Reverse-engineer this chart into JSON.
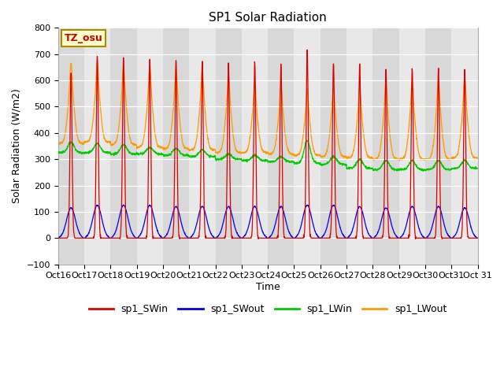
{
  "title": "SP1 Solar Radiation",
  "ylabel": "Solar Radiation (W/m2)",
  "xlabel": "Time",
  "ylim": [
    -100,
    800
  ],
  "background_color": "#e8e8e8",
  "plot_bg_color": "#e8e8e8",
  "colors": {
    "SWin": "#dd0000",
    "SWout": "#0000ee",
    "LWin": "#00cc00",
    "LWout": "#ff9900"
  },
  "tz_label": "TZ_osu",
  "x_tick_labels": [
    "Oct 16",
    "Oct 17",
    "Oct 18",
    "Oct 19",
    "Oct 20",
    "Oct 21",
    "Oct 22",
    "Oct 23",
    "Oct 24",
    "Oct 25",
    "Oct 26",
    "Oct 27",
    "Oct 28",
    "Oct 29",
    "Oct 30",
    "Oct 31"
  ],
  "n_days": 16,
  "pts_per_day": 144,
  "SWin_peaks": [
    630,
    695,
    685,
    680,
    675,
    670,
    665,
    670,
    660,
    715,
    670,
    665,
    645,
    645,
    645,
    640
  ],
  "SWout_flat": [
    115,
    125,
    125,
    125,
    120,
    120,
    120,
    120,
    120,
    125,
    125,
    120,
    115,
    120,
    120,
    115
  ],
  "LWout_peak": [
    580,
    580,
    570,
    565,
    560,
    555,
    530,
    515,
    505,
    490,
    500,
    500,
    510,
    515,
    520,
    525
  ],
  "LWout_base": [
    360,
    365,
    355,
    345,
    340,
    335,
    325,
    325,
    320,
    315,
    310,
    305,
    300,
    300,
    300,
    305
  ],
  "LWin_peak": [
    365,
    360,
    355,
    345,
    340,
    335,
    320,
    315,
    310,
    370,
    310,
    300,
    295,
    295,
    295,
    295
  ],
  "LWin_base": [
    325,
    325,
    320,
    320,
    315,
    310,
    300,
    295,
    290,
    285,
    280,
    265,
    260,
    260,
    260,
    265
  ]
}
